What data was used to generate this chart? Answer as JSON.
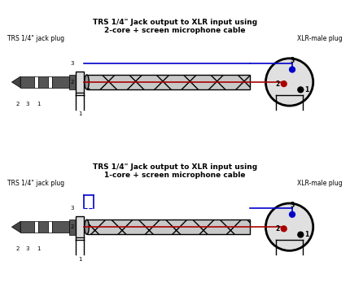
{
  "title1": "TRS 1/4\" Jack output to XLR input using\n2-core + screen microphone cable",
  "title2": "TRS 1/4\" Jack output to XLR input using\n1-core + screen microphone cable",
  "label_left": "TRS 1/4\" jack plug",
  "label_right": "XLR-male plug",
  "bg_color": "#ffffff",
  "line_blue": "#0000cc",
  "line_red": "#aa0000",
  "line_black": "#000000",
  "cable_fill": "#c8c8c8",
  "cable_hatch": "x"
}
